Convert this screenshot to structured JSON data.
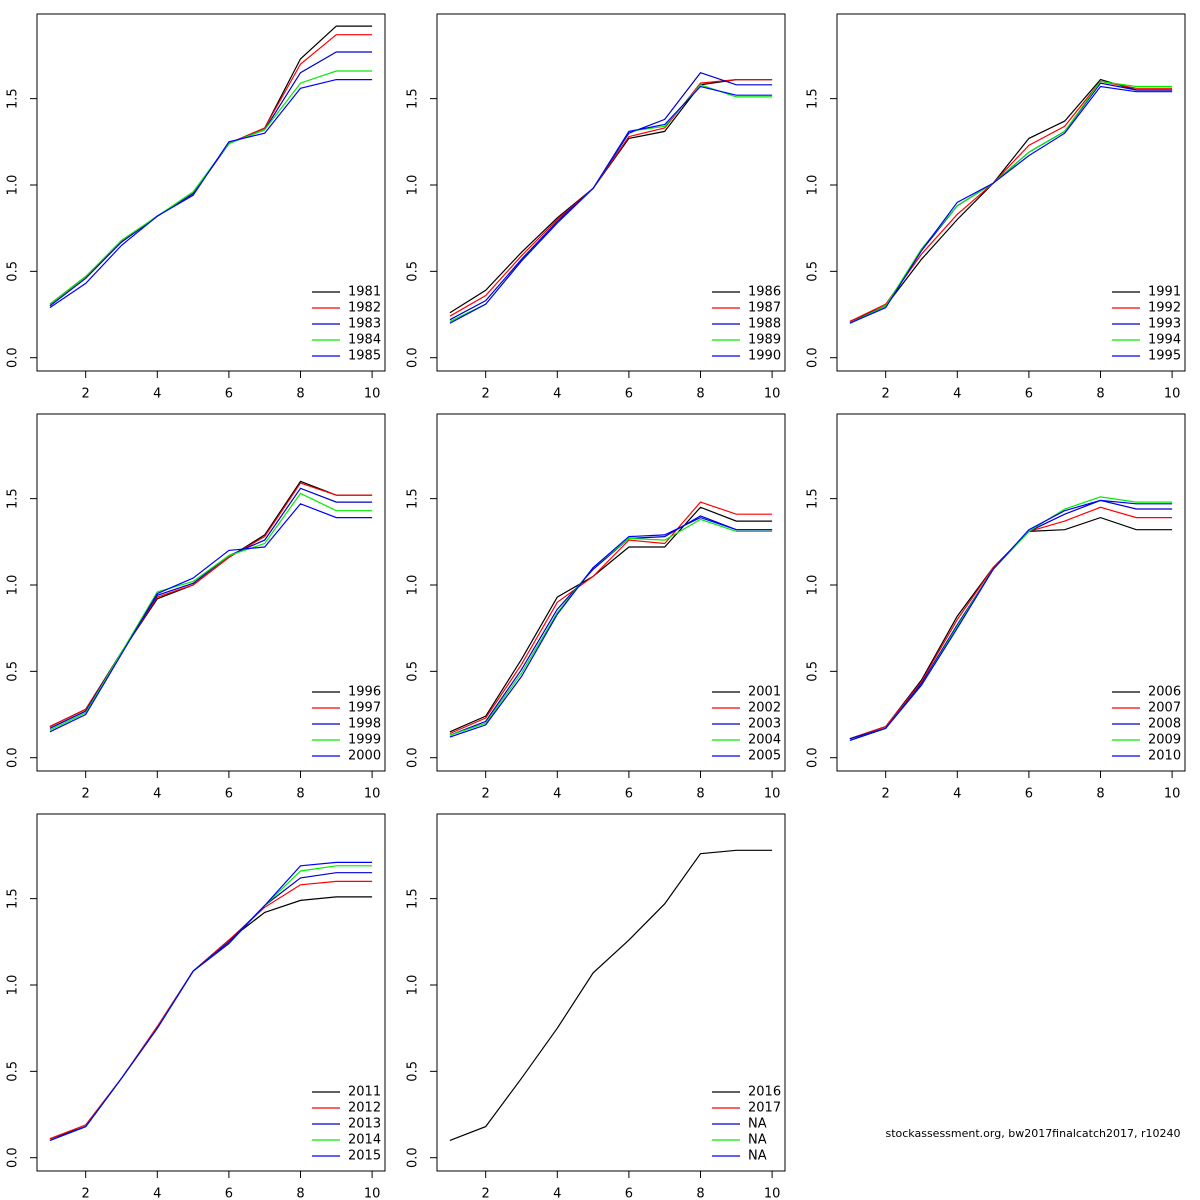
{
  "chart_data": [
    {
      "type": "line",
      "x": [
        1,
        2,
        3,
        4,
        5,
        6,
        7,
        8,
        9,
        10
      ],
      "xlim": [
        0.64,
        10.36
      ],
      "xticks": [
        2,
        4,
        6,
        8,
        10
      ],
      "ylim": [
        -0.077,
        1.99
      ],
      "yticks": [
        {
          "value": 0,
          "label": "0.0"
        },
        0.5,
        {
          "value": 1,
          "label": "1.0"
        },
        1.5
      ],
      "legend": "bottomright",
      "series": [
        {
          "name": "1981",
          "color": "#000000",
          "values": [
            0.31,
            0.47,
            0.67,
            0.82,
            0.95,
            1.24,
            1.33,
            1.73,
            1.92,
            1.92
          ]
        },
        {
          "name": "1982",
          "color": "#ff0000",
          "values": [
            0.31,
            0.47,
            0.67,
            0.82,
            0.95,
            1.24,
            1.33,
            1.7,
            1.87,
            1.87
          ]
        },
        {
          "name": "1983",
          "color": "#0000cd",
          "values": [
            0.3,
            0.46,
            0.67,
            0.82,
            0.95,
            1.24,
            1.32,
            1.65,
            1.77,
            1.77
          ]
        },
        {
          "name": "1984",
          "color": "#00ee00",
          "values": [
            0.31,
            0.47,
            0.68,
            0.82,
            0.96,
            1.24,
            1.32,
            1.59,
            1.66,
            1.66
          ]
        },
        {
          "name": "1985",
          "color": "#0000ff",
          "values": [
            0.29,
            0.43,
            0.65,
            0.82,
            0.94,
            1.25,
            1.3,
            1.56,
            1.61,
            1.61
          ]
        }
      ]
    },
    {
      "type": "line",
      "x": [
        1,
        2,
        3,
        4,
        5,
        6,
        7,
        8,
        9,
        10
      ],
      "xlim": [
        0.64,
        10.36
      ],
      "xticks": [
        2,
        4,
        6,
        8,
        10
      ],
      "ylim": [
        -0.077,
        1.99
      ],
      "yticks": [
        {
          "value": 0,
          "label": "0.0"
        },
        0.5,
        {
          "value": 1,
          "label": "1.0"
        },
        1.5
      ],
      "legend": "bottomright",
      "series": [
        {
          "name": "1986",
          "color": "#000000",
          "values": [
            0.26,
            0.39,
            0.61,
            0.81,
            0.98,
            1.27,
            1.31,
            1.58,
            1.61,
            1.61
          ]
        },
        {
          "name": "1987",
          "color": "#ff0000",
          "values": [
            0.24,
            0.36,
            0.59,
            0.8,
            0.98,
            1.28,
            1.33,
            1.59,
            1.61,
            1.61
          ]
        },
        {
          "name": "1988",
          "color": "#0000cd",
          "values": [
            0.22,
            0.33,
            0.57,
            0.79,
            0.98,
            1.3,
            1.38,
            1.65,
            1.58,
            1.58
          ]
        },
        {
          "name": "1989",
          "color": "#00ee00",
          "values": [
            0.21,
            0.31,
            0.56,
            0.78,
            0.98,
            1.31,
            1.34,
            1.58,
            1.51,
            1.51
          ]
        },
        {
          "name": "1990",
          "color": "#0000ff",
          "values": [
            0.2,
            0.31,
            0.56,
            0.78,
            0.98,
            1.31,
            1.35,
            1.57,
            1.52,
            1.52
          ]
        }
      ]
    },
    {
      "type": "line",
      "x": [
        1,
        2,
        3,
        4,
        5,
        6,
        7,
        8,
        9,
        10
      ],
      "xlim": [
        0.64,
        10.36
      ],
      "xticks": [
        2,
        4,
        6,
        8,
        10
      ],
      "ylim": [
        -0.077,
        1.99
      ],
      "yticks": [
        {
          "value": 0,
          "label": "0.0"
        },
        0.5,
        {
          "value": 1,
          "label": "1.0"
        },
        1.5
      ],
      "legend": "bottomright",
      "series": [
        {
          "name": "1991",
          "color": "#000000",
          "values": [
            0.21,
            0.3,
            0.57,
            0.8,
            1.01,
            1.27,
            1.37,
            1.61,
            1.55,
            1.55
          ]
        },
        {
          "name": "1992",
          "color": "#ff0000",
          "values": [
            0.21,
            0.31,
            0.6,
            0.83,
            1.01,
            1.23,
            1.34,
            1.6,
            1.56,
            1.56
          ]
        },
        {
          "name": "1993",
          "color": "#0000cd",
          "values": [
            0.2,
            0.3,
            0.62,
            0.88,
            1.01,
            1.19,
            1.31,
            1.59,
            1.55,
            1.55
          ]
        },
        {
          "name": "1994",
          "color": "#00ee00",
          "values": [
            0.2,
            0.3,
            0.63,
            0.88,
            1.01,
            1.19,
            1.31,
            1.6,
            1.57,
            1.57
          ]
        },
        {
          "name": "1995",
          "color": "#0000ff",
          "values": [
            0.2,
            0.29,
            0.62,
            0.9,
            1.01,
            1.17,
            1.3,
            1.57,
            1.54,
            1.54
          ]
        }
      ]
    },
    {
      "type": "line",
      "x": [
        1,
        2,
        3,
        4,
        5,
        6,
        7,
        8,
        9,
        10
      ],
      "xlim": [
        0.64,
        10.36
      ],
      "xticks": [
        2,
        4,
        6,
        8,
        10
      ],
      "ylim": [
        -0.077,
        1.99
      ],
      "yticks": [
        {
          "value": 0,
          "label": "0.0"
        },
        0.5,
        {
          "value": 1,
          "label": "1.0"
        },
        1.5
      ],
      "legend": "bottomright",
      "series": [
        {
          "name": "1996",
          "color": "#000000",
          "values": [
            0.18,
            0.28,
            0.61,
            0.92,
            1.0,
            1.16,
            1.29,
            1.6,
            1.52,
            1.52
          ]
        },
        {
          "name": "1997",
          "color": "#ff0000",
          "values": [
            0.18,
            0.28,
            0.61,
            0.93,
            1.0,
            1.16,
            1.28,
            1.59,
            1.52,
            1.52
          ]
        },
        {
          "name": "1998",
          "color": "#0000cd",
          "values": [
            0.17,
            0.27,
            0.61,
            0.94,
            1.01,
            1.17,
            1.26,
            1.56,
            1.48,
            1.48
          ]
        },
        {
          "name": "1999",
          "color": "#00ee00",
          "values": [
            0.16,
            0.26,
            0.61,
            0.96,
            1.02,
            1.17,
            1.24,
            1.53,
            1.43,
            1.43
          ]
        },
        {
          "name": "2000",
          "color": "#0000ff",
          "values": [
            0.15,
            0.25,
            0.6,
            0.95,
            1.04,
            1.2,
            1.22,
            1.47,
            1.39,
            1.39
          ]
        }
      ]
    },
    {
      "type": "line",
      "x": [
        1,
        2,
        3,
        4,
        5,
        6,
        7,
        8,
        9,
        10
      ],
      "xlim": [
        0.64,
        10.36
      ],
      "xticks": [
        2,
        4,
        6,
        8,
        10
      ],
      "ylim": [
        -0.077,
        1.99
      ],
      "yticks": [
        {
          "value": 0,
          "label": "0.0"
        },
        0.5,
        {
          "value": 1,
          "label": "1.0"
        },
        1.5
      ],
      "legend": "bottomright",
      "series": [
        {
          "name": "2001",
          "color": "#000000",
          "values": [
            0.15,
            0.24,
            0.57,
            0.93,
            1.05,
            1.22,
            1.22,
            1.45,
            1.37,
            1.37
          ]
        },
        {
          "name": "2002",
          "color": "#ff0000",
          "values": [
            0.14,
            0.23,
            0.54,
            0.9,
            1.05,
            1.26,
            1.24,
            1.48,
            1.41,
            1.41
          ]
        },
        {
          "name": "2003",
          "color": "#0000cd",
          "values": [
            0.13,
            0.21,
            0.51,
            0.86,
            1.09,
            1.27,
            1.28,
            1.4,
            1.32,
            1.32
          ]
        },
        {
          "name": "2004",
          "color": "#00ee00",
          "values": [
            0.13,
            0.2,
            0.49,
            0.84,
            1.1,
            1.27,
            1.26,
            1.38,
            1.31,
            1.31
          ]
        },
        {
          "name": "2005",
          "color": "#0000ff",
          "values": [
            0.12,
            0.19,
            0.47,
            0.83,
            1.1,
            1.28,
            1.29,
            1.39,
            1.32,
            1.32
          ]
        }
      ]
    },
    {
      "type": "line",
      "x": [
        1,
        2,
        3,
        4,
        5,
        6,
        7,
        8,
        9,
        10
      ],
      "xlim": [
        0.64,
        10.36
      ],
      "xticks": [
        2,
        4,
        6,
        8,
        10
      ],
      "ylim": [
        -0.077,
        1.99
      ],
      "yticks": [
        {
          "value": 0,
          "label": "0.0"
        },
        0.5,
        {
          "value": 1,
          "label": "1.0"
        },
        1.5
      ],
      "legend": "bottomright",
      "series": [
        {
          "name": "2006",
          "color": "#000000",
          "values": [
            0.11,
            0.18,
            0.45,
            0.82,
            1.1,
            1.31,
            1.32,
            1.39,
            1.32,
            1.32
          ]
        },
        {
          "name": "2007",
          "color": "#ff0000",
          "values": [
            0.11,
            0.18,
            0.44,
            0.8,
            1.1,
            1.31,
            1.37,
            1.45,
            1.39,
            1.39
          ]
        },
        {
          "name": "2008",
          "color": "#0000cd",
          "values": [
            0.11,
            0.17,
            0.43,
            0.77,
            1.09,
            1.31,
            1.41,
            1.49,
            1.44,
            1.44
          ]
        },
        {
          "name": "2009",
          "color": "#00ee00",
          "values": [
            0.1,
            0.17,
            0.42,
            0.76,
            1.09,
            1.31,
            1.44,
            1.51,
            1.48,
            1.48
          ]
        },
        {
          "name": "2010",
          "color": "#0000ff",
          "values": [
            0.1,
            0.17,
            0.42,
            0.75,
            1.09,
            1.32,
            1.43,
            1.49,
            1.47,
            1.47
          ]
        }
      ]
    },
    {
      "type": "line",
      "x": [
        1,
        2,
        3,
        4,
        5,
        6,
        7,
        8,
        9,
        10
      ],
      "xlim": [
        0.64,
        10.36
      ],
      "xticks": [
        2,
        4,
        6,
        8,
        10
      ],
      "ylim": [
        -0.077,
        1.99
      ],
      "yticks": [
        {
          "value": 0,
          "label": "0.0"
        },
        0.5,
        {
          "value": 1,
          "label": "1.0"
        },
        1.5
      ],
      "legend": "bottomright",
      "series": [
        {
          "name": "2011",
          "color": "#000000",
          "values": [
            0.11,
            0.18,
            0.46,
            0.75,
            1.08,
            1.26,
            1.42,
            1.49,
            1.51,
            1.51
          ]
        },
        {
          "name": "2012",
          "color": "#ff0000",
          "values": [
            0.11,
            0.19,
            0.46,
            0.76,
            1.08,
            1.26,
            1.45,
            1.58,
            1.6,
            1.6
          ]
        },
        {
          "name": "2013",
          "color": "#0000cd",
          "values": [
            0.1,
            0.18,
            0.46,
            0.75,
            1.08,
            1.25,
            1.46,
            1.62,
            1.65,
            1.65
          ]
        },
        {
          "name": "2014",
          "color": "#00ee00",
          "values": [
            0.1,
            0.18,
            0.46,
            0.75,
            1.08,
            1.24,
            1.46,
            1.66,
            1.69,
            1.69
          ]
        },
        {
          "name": "2015",
          "color": "#0000ff",
          "values": [
            0.1,
            0.18,
            0.46,
            0.75,
            1.08,
            1.24,
            1.46,
            1.69,
            1.71,
            1.71
          ]
        }
      ]
    },
    {
      "type": "line",
      "x": [
        1,
        2,
        3,
        4,
        5,
        6,
        7,
        8,
        9,
        10
      ],
      "xlim": [
        0.64,
        10.36
      ],
      "xticks": [
        2,
        4,
        6,
        8,
        10
      ],
      "ylim": [
        -0.077,
        1.99
      ],
      "yticks": [
        {
          "value": 0,
          "label": "0.0"
        },
        0.5,
        {
          "value": 1,
          "label": "1.0"
        },
        1.5
      ],
      "legend": "bottomright",
      "series": [
        {
          "name": "2016",
          "color": "#000000",
          "values": [
            0.1,
            0.18,
            0.46,
            0.75,
            1.07,
            1.26,
            1.47,
            1.76,
            1.78,
            1.78
          ]
        },
        {
          "name": "2017",
          "color": "#ff0000",
          "values": [
            null,
            null,
            null,
            null,
            null,
            null,
            null,
            null,
            null,
            null
          ]
        },
        {
          "name": "NA",
          "color": "#0000cd",
          "values": [
            null,
            null,
            null,
            null,
            null,
            null,
            null,
            null,
            null,
            null
          ]
        },
        {
          "name": "NA",
          "color": "#00ee00",
          "values": [
            null,
            null,
            null,
            null,
            null,
            null,
            null,
            null,
            null,
            null
          ]
        },
        {
          "name": "NA",
          "color": "#0000ff",
          "values": [
            null,
            null,
            null,
            null,
            null,
            null,
            null,
            null,
            null,
            null
          ]
        }
      ]
    }
  ],
  "footer": "stockassessment.org, bw2017finalcatch2017, r10240"
}
